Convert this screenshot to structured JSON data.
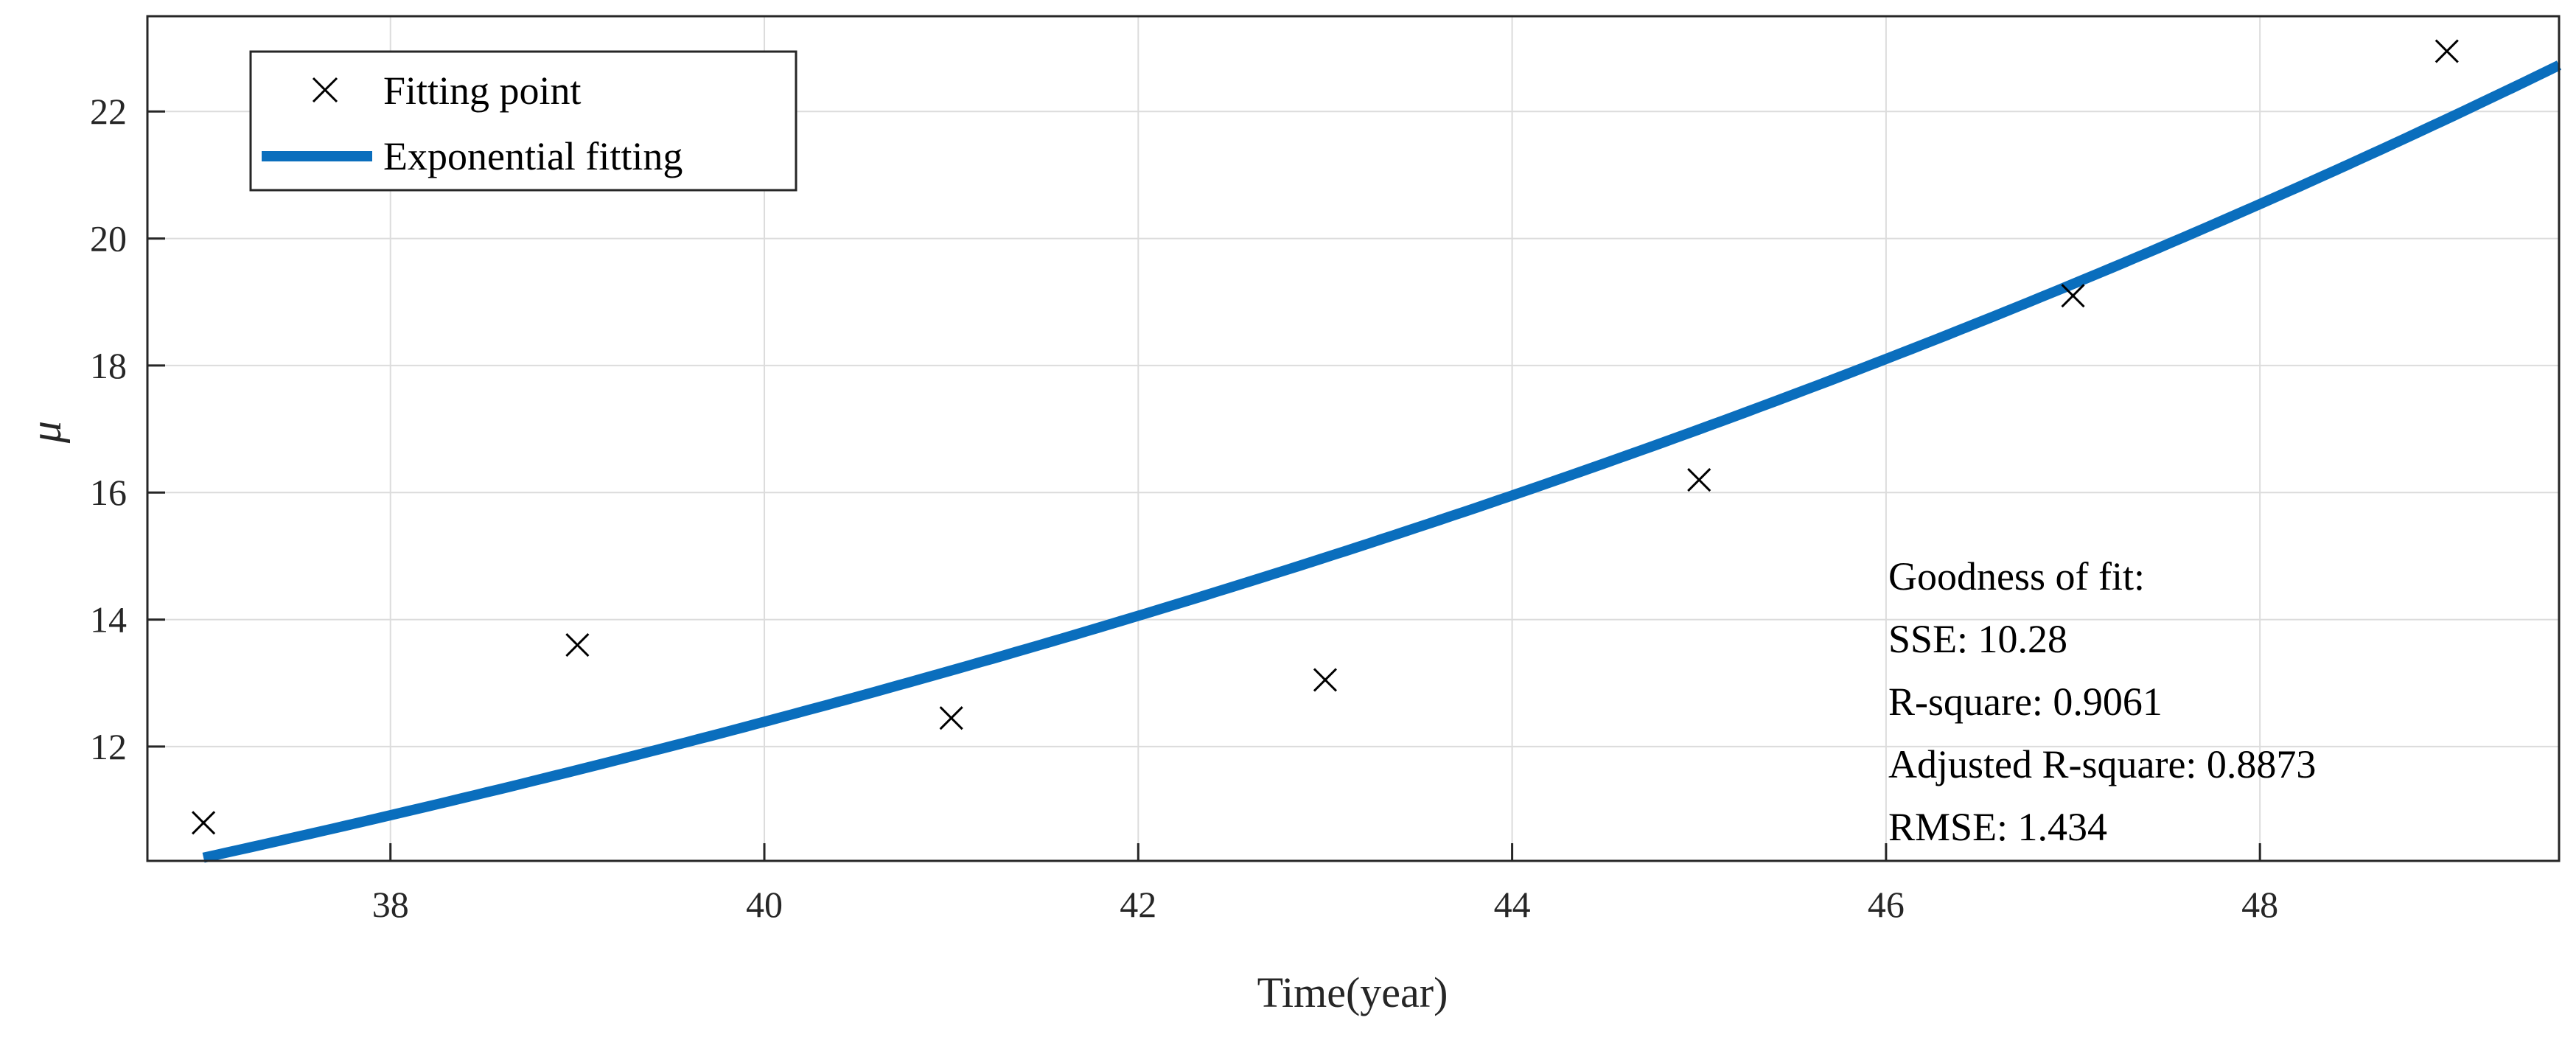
{
  "chart_data": {
    "type": "scatter",
    "title": "",
    "xlabel": "Time(year)",
    "ylabel": "μ",
    "xlim": [
      36.7,
      49.6
    ],
    "ylim": [
      10.2,
      23.5
    ],
    "xticks": [
      38,
      40,
      42,
      44,
      46,
      48
    ],
    "yticks": [
      12,
      14,
      16,
      18,
      20,
      22
    ],
    "grid": true,
    "legend_position": "top-left",
    "series": [
      {
        "name": "Fitting point",
        "kind": "scatter",
        "marker": "x",
        "color": "#000000",
        "x": [
          37,
          39,
          41,
          43,
          45,
          47,
          49
        ],
        "y": [
          10.8,
          13.6,
          12.45,
          13.05,
          16.2,
          19.1,
          22.95
        ]
      },
      {
        "name": "Exponential fitting",
        "kind": "line",
        "color": "#0a6ebd",
        "fit": {
          "a": 10.25,
          "b": 0.0632,
          "x0": 37
        }
      }
    ],
    "annotation": {
      "title": "Goodness of fit:",
      "lines": [
        "SSE: 10.28",
        "R-square: 0.9061",
        "Adjusted R-square: 0.8873",
        "RMSE: 1.434"
      ]
    }
  }
}
